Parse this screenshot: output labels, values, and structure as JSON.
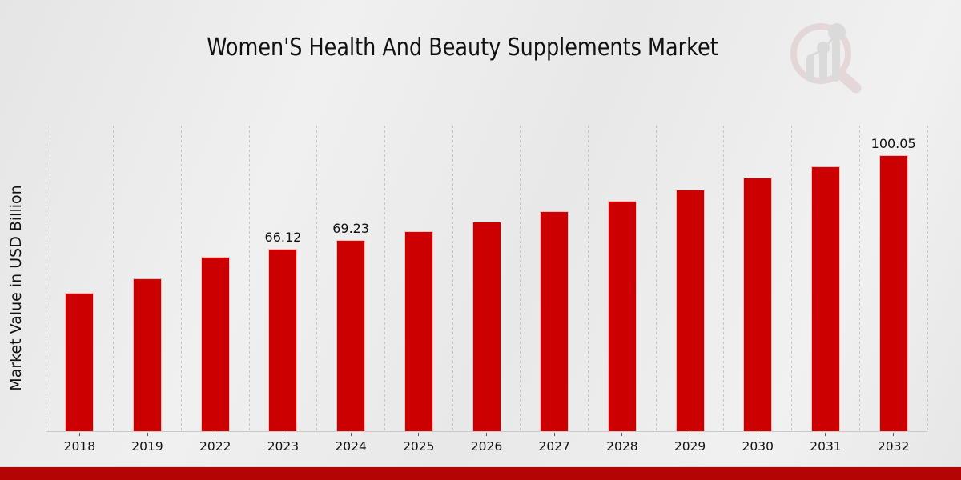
{
  "title": "Women'S Health And Beauty Supplements Market",
  "y_axis_label": "Market Value in USD Billion",
  "colors": {
    "bar": "#cc0000",
    "bottom_strip": "#b50404",
    "gridline": "#c6c6c6",
    "text": "#111111",
    "logo_ring": "#d9bcbc",
    "logo_bars": "#c3c3c3"
  },
  "logo": {
    "name": "magnifier-growth-chart-logo"
  },
  "chart_data": {
    "type": "bar",
    "title": "Women'S Health And Beauty Supplements Market",
    "xlabel": "",
    "ylabel": "Market Value in USD Billion",
    "categories": [
      "2018",
      "2019",
      "2022",
      "2023",
      "2024",
      "2025",
      "2026",
      "2027",
      "2028",
      "2029",
      "2030",
      "2031",
      "2032"
    ],
    "values": [
      50.0,
      55.3,
      63.2,
      66.12,
      69.23,
      72.5,
      76.0,
      79.8,
      83.5,
      87.6,
      91.9,
      96.0,
      100.05
    ],
    "data_labels": {
      "2023": "66.12",
      "2024": "69.23",
      "2032": "100.05"
    },
    "ylim": [
      0,
      111
    ],
    "grid": "vertical-dashed",
    "legend": "none",
    "bar_color": "#cc0000"
  }
}
